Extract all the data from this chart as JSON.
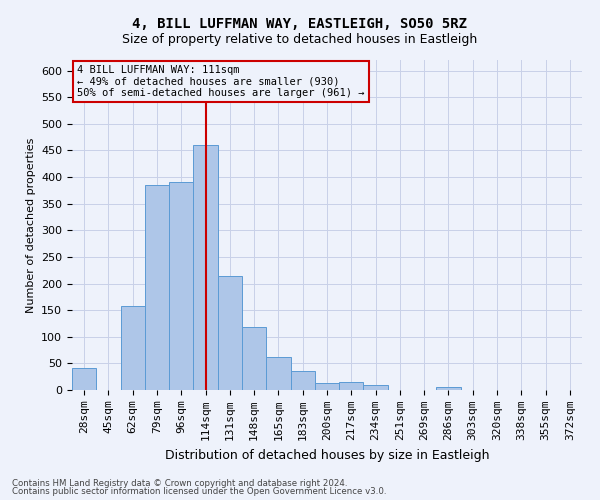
{
  "title": "4, BILL LUFFMAN WAY, EASTLEIGH, SO50 5RZ",
  "subtitle": "Size of property relative to detached houses in Eastleigh",
  "xlabel": "Distribution of detached houses by size in Eastleigh",
  "ylabel": "Number of detached properties",
  "bar_labels": [
    "28sqm",
    "45sqm",
    "62sqm",
    "79sqm",
    "96sqm",
    "114sqm",
    "131sqm",
    "148sqm",
    "165sqm",
    "183sqm",
    "200sqm",
    "217sqm",
    "234sqm",
    "251sqm",
    "269sqm",
    "286sqm",
    "303sqm",
    "320sqm",
    "338sqm",
    "355sqm",
    "372sqm"
  ],
  "bar_values": [
    42,
    0,
    157,
    385,
    390,
    460,
    215,
    118,
    62,
    35,
    14,
    15,
    9,
    0,
    0,
    5,
    0,
    0,
    0,
    0,
    0
  ],
  "bar_color": "#aec6e8",
  "bar_edgecolor": "#5b9bd5",
  "vline_x": 5,
  "vline_color": "#cc0000",
  "ylim": [
    0,
    620
  ],
  "yticks": [
    0,
    50,
    100,
    150,
    200,
    250,
    300,
    350,
    400,
    450,
    500,
    550,
    600
  ],
  "annotation_text": "4 BILL LUFFMAN WAY: 111sqm\n← 49% of detached houses are smaller (930)\n50% of semi-detached houses are larger (961) →",
  "annotation_box_edgecolor": "#cc0000",
  "footer_line1": "Contains HM Land Registry data © Crown copyright and database right 2024.",
  "footer_line2": "Contains public sector information licensed under the Open Government Licence v3.0.",
  "bg_color": "#eef2fb",
  "grid_color": "#c8d0e8",
  "title_fontsize": 10,
  "subtitle_fontsize": 9,
  "ylabel_fontsize": 8,
  "xlabel_fontsize": 9,
  "tick_fontsize": 8,
  "annot_fontsize": 7.5,
  "footer_fontsize": 6.2
}
